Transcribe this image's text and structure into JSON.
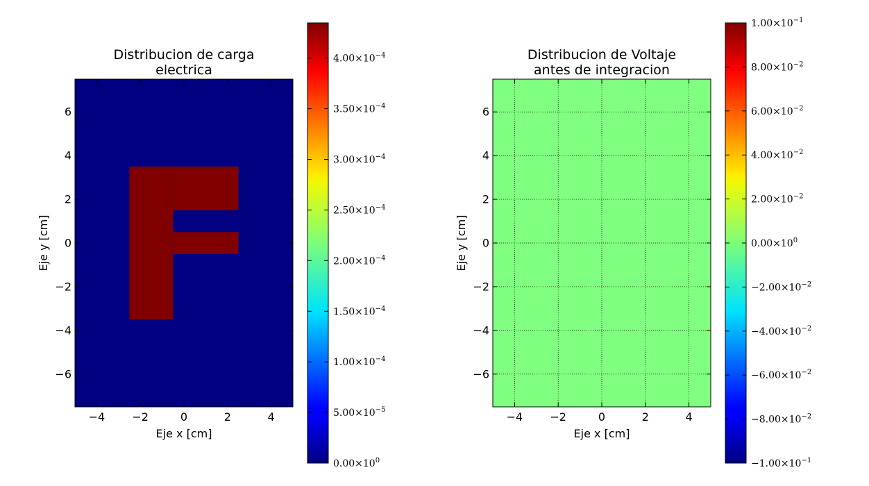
{
  "chart_data": [
    {
      "type": "heatmap",
      "title_lines": [
        "Distribucion de carga",
        "electrica"
      ],
      "xlabel": "Eje x [cm]",
      "ylabel": "Eje y [cm]",
      "xlim": [
        -5,
        5
      ],
      "ylim": [
        -7.5,
        7.5
      ],
      "xticks": [
        -4,
        -2,
        0,
        2,
        4
      ],
      "yticks": [
        -6,
        -4,
        -2,
        0,
        2,
        4,
        6
      ],
      "xtick_labels": [
        "−4",
        "−2",
        "0",
        "2",
        "4"
      ],
      "ytick_labels": [
        "−6",
        "−4",
        "−2",
        "0",
        "2",
        "4",
        "6"
      ],
      "grid": false,
      "colormap": "jet",
      "background_value": 0,
      "regions": [
        {
          "x": [
            -2.5,
            -0.5
          ],
          "y": [
            -3.5,
            3.5
          ],
          "value": 0.00043478
        },
        {
          "x": [
            -0.5,
            2.5
          ],
          "y": [
            1.5,
            3.5
          ],
          "value": 0.00043478
        },
        {
          "x": [
            -0.5,
            2.5
          ],
          "y": [
            -0.5,
            0.5
          ],
          "value": 0.00043478
        }
      ],
      "colorbar": {
        "vmin": 0,
        "vmax": 0.00043478,
        "ticks": [
          {
            "value": 0,
            "mantissa": "0.00",
            "exponent": "0"
          },
          {
            "value": 5e-05,
            "mantissa": "5.00",
            "exponent": "−5"
          },
          {
            "value": 0.0001,
            "mantissa": "1.00",
            "exponent": "−4"
          },
          {
            "value": 0.00015,
            "mantissa": "1.50",
            "exponent": "−4"
          },
          {
            "value": 0.0002,
            "mantissa": "2.00",
            "exponent": "−4"
          },
          {
            "value": 0.00025,
            "mantissa": "2.50",
            "exponent": "−4"
          },
          {
            "value": 0.0003,
            "mantissa": "3.00",
            "exponent": "−4"
          },
          {
            "value": 0.00035,
            "mantissa": "3.50",
            "exponent": "−4"
          },
          {
            "value": 0.0004,
            "mantissa": "4.00",
            "exponent": "−4"
          }
        ]
      }
    },
    {
      "type": "heatmap",
      "title_lines": [
        "Distribucion de Voltaje",
        "antes de integracion"
      ],
      "xlabel": "Eje x [cm]",
      "ylabel": "Eje y [cm]",
      "xlim": [
        -5,
        5
      ],
      "ylim": [
        -7.5,
        7.5
      ],
      "xticks": [
        -4,
        -2,
        0,
        2,
        4
      ],
      "yticks": [
        -6,
        -4,
        -2,
        0,
        2,
        4,
        6
      ],
      "xtick_labels": [
        "−4",
        "−2",
        "0",
        "2",
        "4"
      ],
      "ytick_labels": [
        "−6",
        "−4",
        "−2",
        "0",
        "2",
        "4",
        "6"
      ],
      "grid": true,
      "colormap": "jet",
      "background_value": 0,
      "regions": [],
      "colorbar": {
        "vmin": -0.1,
        "vmax": 0.1,
        "ticks": [
          {
            "value": -0.1,
            "mantissa": "−1.00",
            "exponent": "−1"
          },
          {
            "value": -0.08,
            "mantissa": "−8.00",
            "exponent": "−2"
          },
          {
            "value": -0.06,
            "mantissa": "−6.00",
            "exponent": "−2"
          },
          {
            "value": -0.04,
            "mantissa": "−4.00",
            "exponent": "−2"
          },
          {
            "value": -0.02,
            "mantissa": "−2.00",
            "exponent": "−2"
          },
          {
            "value": 0,
            "mantissa": "0.00",
            "exponent": "0"
          },
          {
            "value": 0.02,
            "mantissa": "2.00",
            "exponent": "−2"
          },
          {
            "value": 0.04,
            "mantissa": "4.00",
            "exponent": "−2"
          },
          {
            "value": 0.06,
            "mantissa": "6.00",
            "exponent": "−2"
          },
          {
            "value": 0.08,
            "mantissa": "8.00",
            "exponent": "−2"
          },
          {
            "value": 0.1,
            "mantissa": "1.00",
            "exponent": "−1"
          }
        ]
      }
    }
  ]
}
